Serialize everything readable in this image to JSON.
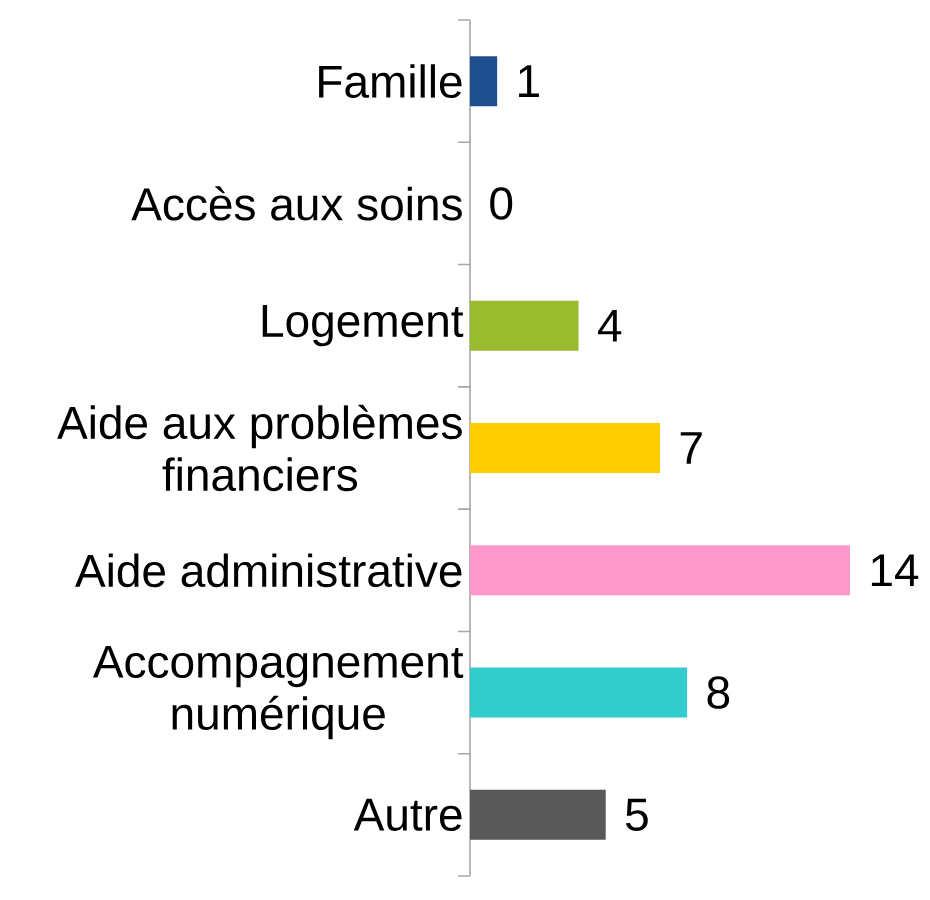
{
  "chart_data": {
    "type": "bar",
    "orientation": "horizontal",
    "data_labels": true,
    "categories": [
      "Famille",
      "Accès aux soins",
      "Logement",
      "Aide aux problèmes financiers",
      "Aide administrative",
      "Accompagnement numérique",
      "Autre"
    ],
    "values": [
      1,
      0,
      4,
      7,
      14,
      8,
      5
    ],
    "colors": [
      "#1f4e8c",
      "#808080",
      "#9bbb2f",
      "#ffcc00",
      "#ff99cc",
      "#33cccc",
      "#595959"
    ]
  }
}
